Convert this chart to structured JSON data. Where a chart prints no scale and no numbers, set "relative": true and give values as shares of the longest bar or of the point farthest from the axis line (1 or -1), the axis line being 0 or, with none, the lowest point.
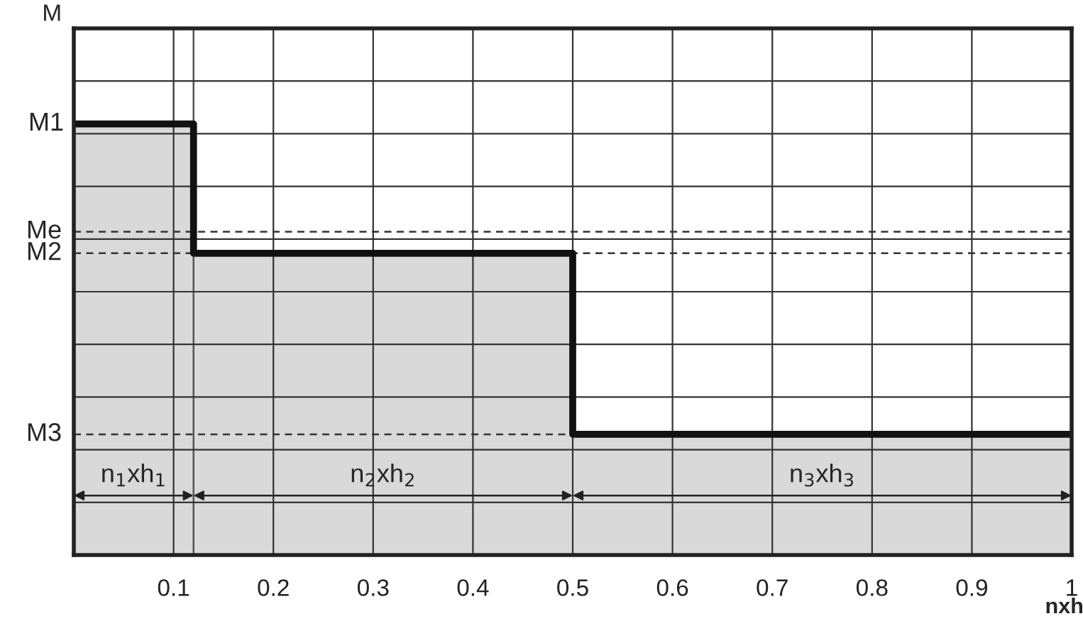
{
  "chart_data": {
    "type": "step",
    "relative": true,
    "xlabel": "nxh",
    "ylabel": "M",
    "x": [
      0,
      0.12,
      0.5,
      1
    ],
    "series": [
      {
        "type": "area",
        "color": "#d9d9d9",
        "values": [
          1,
          0.7,
          0.28,
          0.28
        ]
      },
      {
        "type": "step",
        "color": "#111111",
        "values": [
          1,
          0.7,
          0.28,
          0.28
        ]
      }
    ],
    "xlim": [
      0,
      1
    ],
    "xticks": [
      {
        "value": 0,
        "label": null
      },
      0.1,
      0.2,
      0.3,
      0.4,
      0.5,
      0.6,
      0.7,
      0.8,
      0.9,
      1
    ],
    "tick_labels": "x",
    "grid": true,
    "ref_lines": [
      {
        "axis": "y",
        "value": 0.75,
        "label": "Me",
        "line_style": "dashed",
        "color": "#333333"
      },
      {
        "axis": "y",
        "value": 0.7,
        "label": "M2",
        "line_style": "dashed",
        "color": "#333333"
      },
      {
        "axis": "y",
        "value": 0.28,
        "label": "M3",
        "line_style": "dashed",
        "color": "#333333"
      },
      {
        "axis": "x",
        "value": 0.12,
        "line_style": "solid",
        "color": "#555555"
      }
    ],
    "annotations": [
      {
        "text": "M1",
        "x": 0,
        "y": 1
      },
      "n$_{1}$xh$_{1}$",
      "n$_{2}$xh$_{2}$",
      "n$_{3}$xh$_{3}$"
    ]
  }
}
